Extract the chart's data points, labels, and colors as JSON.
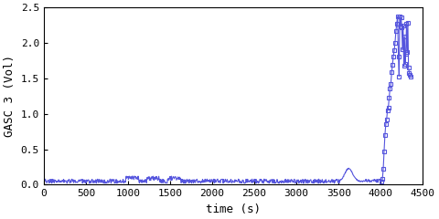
{
  "title": "",
  "xlabel": "time (s)",
  "ylabel": "GASC 3 (Vol)",
  "xlim": [
    0,
    4500
  ],
  "ylim": [
    0,
    2.5
  ],
  "xticks": [
    0,
    500,
    1000,
    1500,
    2000,
    2500,
    3000,
    3500,
    4000,
    4500
  ],
  "yticks": [
    0,
    0.5,
    1.0,
    1.5,
    2.0,
    2.5
  ],
  "line_color": "#5555dd",
  "marker": "s",
  "markersize": 3,
  "linewidth": 0.8,
  "bg_color": "#ffffff",
  "font_family": "monospace",
  "xlabel_fontsize": 9,
  "ylabel_fontsize": 9,
  "tick_fontsize": 8
}
